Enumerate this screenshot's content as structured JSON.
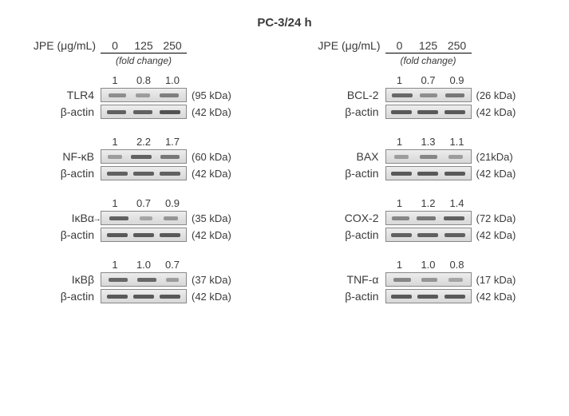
{
  "title": "PC-3/24 h",
  "header_label": "JPE (μg/mL)",
  "doses": [
    "0",
    "125",
    "250"
  ],
  "fold_caption": "(fold change)",
  "mw_actin": "(42 kDa)",
  "actin_label": "β-actin",
  "left": [
    {
      "name": "TLR4",
      "mw": "(95 kDa)",
      "fold": [
        "1",
        "0.8",
        "1.0"
      ],
      "band_w": [
        22,
        18,
        24
      ],
      "band_op": [
        0.55,
        0.45,
        0.65
      ],
      "actin_w": [
        24,
        24,
        26
      ],
      "actin_op": [
        0.85,
        0.85,
        0.95
      ],
      "arrow": false
    },
    {
      "name": "NF-κB",
      "mw": "(60 kDa)",
      "fold": [
        "1",
        "2.2",
        "1.7"
      ],
      "band_w": [
        18,
        26,
        24
      ],
      "band_op": [
        0.45,
        0.85,
        0.7
      ],
      "actin_w": [
        26,
        26,
        26
      ],
      "actin_op": [
        0.85,
        0.85,
        0.85
      ],
      "arrow": false
    },
    {
      "name": "IκBα",
      "mw": "(35 kDa)",
      "fold": [
        "1",
        "0.7",
        "0.9"
      ],
      "band_w": [
        24,
        16,
        18
      ],
      "band_op": [
        0.85,
        0.4,
        0.5
      ],
      "actin_w": [
        26,
        26,
        26
      ],
      "actin_op": [
        0.9,
        0.9,
        0.9
      ],
      "arrow": true
    },
    {
      "name": "IκBβ",
      "mw": "(37 kDa)",
      "fold": [
        "1",
        "1.0",
        "0.7"
      ],
      "band_w": [
        24,
        24,
        16
      ],
      "band_op": [
        0.8,
        0.8,
        0.45
      ],
      "actin_w": [
        26,
        26,
        26
      ],
      "actin_op": [
        0.9,
        0.9,
        0.9
      ],
      "arrow": false
    }
  ],
  "right": [
    {
      "name": "BCL-2",
      "mw": "(26 kDa)",
      "fold": [
        "1",
        "0.7",
        "0.9"
      ],
      "band_w": [
        26,
        22,
        24
      ],
      "band_op": [
        0.8,
        0.55,
        0.7
      ],
      "actin_w": [
        26,
        26,
        26
      ],
      "actin_op": [
        0.9,
        0.9,
        0.9
      ]
    },
    {
      "name": "BAX",
      "mw": "(21kDa)",
      "fold": [
        "1",
        "1.3",
        "1.1"
      ],
      "band_w": [
        18,
        22,
        18
      ],
      "band_op": [
        0.45,
        0.6,
        0.45
      ],
      "actin_w": [
        26,
        26,
        26
      ],
      "actin_op": [
        0.9,
        0.9,
        0.9
      ]
    },
    {
      "name": "COX-2",
      "mw": "(72 kDa)",
      "fold": [
        "1",
        "1.2",
        "1.4"
      ],
      "band_w": [
        22,
        24,
        26
      ],
      "band_op": [
        0.6,
        0.7,
        0.85
      ],
      "actin_w": [
        26,
        26,
        26
      ],
      "actin_op": [
        0.85,
        0.85,
        0.85
      ]
    },
    {
      "name": "TNF-α",
      "mw": "(17 kDa)",
      "fold": [
        "1",
        "1.0",
        "0.8"
      ],
      "band_w": [
        22,
        20,
        18
      ],
      "band_op": [
        0.6,
        0.5,
        0.4
      ],
      "actin_w": [
        26,
        26,
        26
      ],
      "actin_op": [
        0.9,
        0.9,
        0.9
      ]
    }
  ]
}
